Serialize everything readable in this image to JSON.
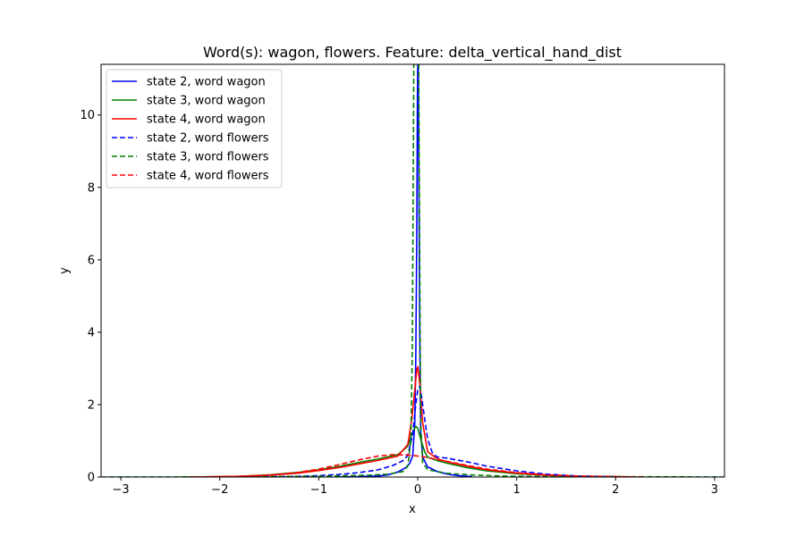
{
  "chart_data": {
    "type": "line",
    "title": "Word(s): wagon, flowers. Feature: delta_vertical_hand_dist",
    "xlabel": "x",
    "ylabel": "y",
    "xlim": [
      -3.2,
      3.1
    ],
    "ylim": [
      0,
      11.4
    ],
    "xticks": [
      -3,
      -2,
      -1,
      0,
      1,
      2,
      3
    ],
    "yticks": [
      0,
      2,
      4,
      6,
      8,
      10
    ],
    "grid": false,
    "legend_position": "top-left",
    "series": [
      {
        "name": "state 2, word wagon",
        "color": "#0000ff",
        "dash": "solid",
        "x": [
          -0.8,
          -0.6,
          -0.4,
          -0.3,
          -0.2,
          -0.12,
          -0.08,
          -0.05,
          -0.03,
          -0.02,
          -0.01,
          -0.003,
          0.0,
          0.005,
          0.01,
          0.02,
          0.03,
          0.05,
          0.1,
          0.2,
          0.3,
          0.4,
          0.5,
          0.55
        ],
        "y": [
          0,
          0.01,
          0.03,
          0.06,
          0.14,
          0.26,
          0.38,
          0.6,
          1.5,
          3.2,
          6.5,
          10.5,
          11.4,
          11.4,
          9.0,
          4.0,
          1.2,
          0.55,
          0.28,
          0.15,
          0.08,
          0.04,
          0.02,
          0.01
        ]
      },
      {
        "name": "state 3, word wagon",
        "color": "#008000",
        "dash": "solid",
        "x": [
          -2.4,
          -2.0,
          -1.8,
          -1.5,
          -1.2,
          -1.0,
          -0.8,
          -0.6,
          -0.4,
          -0.2,
          -0.1,
          -0.05,
          -0.02,
          0.0,
          0.03,
          0.07,
          0.1,
          0.2,
          0.3,
          0.5,
          0.7,
          1.0,
          1.3,
          1.6,
          2.0,
          2.2
        ],
        "y": [
          0.0,
          0.01,
          0.02,
          0.06,
          0.13,
          0.2,
          0.29,
          0.4,
          0.5,
          0.62,
          0.85,
          1.25,
          1.4,
          1.35,
          1.05,
          0.7,
          0.55,
          0.45,
          0.38,
          0.26,
          0.17,
          0.09,
          0.05,
          0.02,
          0.01,
          0.0
        ]
      },
      {
        "name": "state 4, word wagon",
        "color": "#ff0000",
        "dash": "solid",
        "x": [
          -2.3,
          -2.0,
          -1.8,
          -1.5,
          -1.2,
          -1.0,
          -0.8,
          -0.6,
          -0.4,
          -0.2,
          -0.1,
          -0.06,
          -0.03,
          -0.01,
          0.0,
          0.02,
          0.05,
          0.1,
          0.2,
          0.3,
          0.5,
          0.7,
          1.0,
          1.3,
          1.6,
          2.0,
          2.2
        ],
        "y": [
          0.0,
          0.01,
          0.02,
          0.05,
          0.11,
          0.18,
          0.26,
          0.36,
          0.46,
          0.58,
          0.9,
          1.6,
          2.4,
          2.95,
          3.05,
          2.6,
          1.5,
          0.7,
          0.5,
          0.42,
          0.3,
          0.2,
          0.11,
          0.05,
          0.02,
          0.01,
          0.0
        ]
      },
      {
        "name": "state 2, word flowers",
        "color": "#0000ff",
        "dash": "dashed",
        "x": [
          -1.8,
          -1.5,
          -1.2,
          -1.0,
          -0.8,
          -0.6,
          -0.4,
          -0.25,
          -0.15,
          -0.1,
          -0.05,
          -0.02,
          0.0,
          0.02,
          0.04,
          0.07,
          0.1,
          0.15,
          0.2,
          0.3,
          0.5,
          0.7,
          1.0,
          1.3,
          1.6,
          2.0
        ],
        "y": [
          0.0,
          0.01,
          0.02,
          0.04,
          0.07,
          0.12,
          0.2,
          0.32,
          0.45,
          0.6,
          1.2,
          2.0,
          2.4,
          2.5,
          2.2,
          1.6,
          1.05,
          0.65,
          0.55,
          0.52,
          0.42,
          0.3,
          0.17,
          0.08,
          0.03,
          0.01
        ]
      },
      {
        "name": "state 3, word flowers",
        "color": "#008000",
        "dash": "dashed",
        "x": [
          -3.2,
          -2.0,
          -1.0,
          -0.5,
          -0.3,
          -0.15,
          -0.1,
          -0.07,
          -0.055,
          -0.045,
          -0.04,
          -0.035,
          -0.02,
          -0.005,
          0.0,
          0.01,
          0.02,
          0.03,
          0.05,
          0.1,
          0.3,
          0.6,
          1.0,
          2.0,
          3.1
        ],
        "y": [
          0.0,
          0.005,
          0.02,
          0.05,
          0.08,
          0.15,
          0.3,
          1.0,
          3.5,
          8.5,
          11.4,
          11.4,
          11.4,
          11.4,
          11.4,
          11.4,
          6.0,
          1.5,
          0.4,
          0.2,
          0.1,
          0.05,
          0.02,
          0.01,
          0.0
        ]
      },
      {
        "name": "state 4, word flowers",
        "color": "#ff0000",
        "dash": "dashed",
        "x": [
          -2.3,
          -2.0,
          -1.8,
          -1.5,
          -1.2,
          -1.0,
          -0.8,
          -0.6,
          -0.4,
          -0.25,
          -0.1,
          0.0,
          0.1,
          0.2,
          0.3,
          0.5,
          0.7,
          1.0,
          1.3,
          1.6,
          2.0,
          2.3
        ],
        "y": [
          0.0,
          0.01,
          0.02,
          0.05,
          0.13,
          0.22,
          0.34,
          0.47,
          0.58,
          0.62,
          0.61,
          0.58,
          0.54,
          0.48,
          0.43,
          0.32,
          0.22,
          0.12,
          0.06,
          0.03,
          0.01,
          0.0
        ]
      }
    ]
  }
}
